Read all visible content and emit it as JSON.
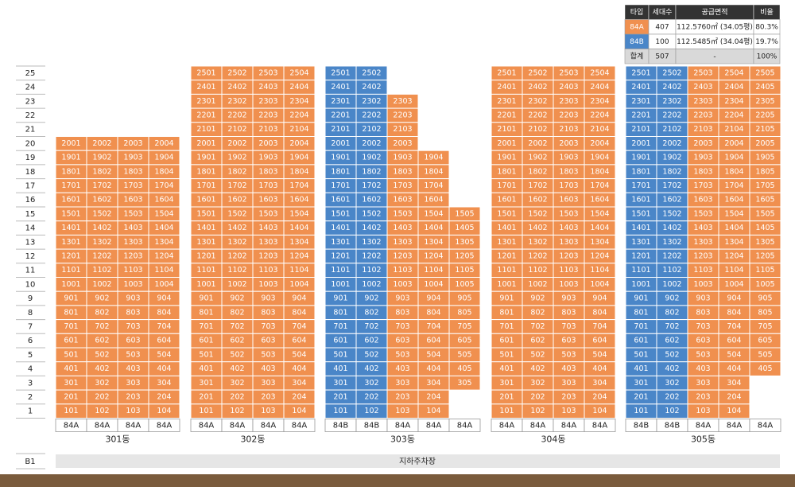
{
  "summary_table": {
    "headers": [
      "타입",
      "세대수",
      "공급면적",
      "비율"
    ],
    "rows": [
      [
        "84A",
        "407",
        "112.5760㎡ (34.05평)",
        "80.3%"
      ],
      [
        "84B",
        "100",
        "112.5485㎡ (34.04평)",
        "19.7%"
      ],
      [
        "합계",
        "507",
        "-",
        "100%"
      ]
    ]
  },
  "type_colors": {
    "84A": "#f0904f",
    "84B": "#4a86c8"
  },
  "floors": [
    25,
    24,
    23,
    22,
    21,
    20,
    19,
    18,
    17,
    16,
    15,
    14,
    13,
    12,
    11,
    10,
    9,
    8,
    7,
    6,
    5,
    4,
    3,
    2,
    1
  ],
  "basement": {
    "floor": "B1",
    "label": "지하주차장"
  },
  "buildings": [
    {
      "name": "301동",
      "types": [
        "84A",
        "84A",
        "84A",
        "84A"
      ],
      "rows": [
        [],
        [],
        [],
        [],
        [],
        [
          2001,
          2002,
          2003,
          2004
        ],
        [
          1901,
          1902,
          1903,
          1904
        ],
        [
          1801,
          1802,
          1803,
          1804
        ],
        [
          1701,
          1702,
          1703,
          1704
        ],
        [
          1601,
          1602,
          1603,
          1604
        ],
        [
          1501,
          1502,
          1503,
          1504
        ],
        [
          1401,
          1402,
          1403,
          1404
        ],
        [
          1301,
          1302,
          1303,
          1304
        ],
        [
          1201,
          1202,
          1203,
          1204
        ],
        [
          1101,
          1102,
          1103,
          1104
        ],
        [
          1001,
          1002,
          1003,
          1004
        ],
        [
          901,
          902,
          903,
          904
        ],
        [
          801,
          802,
          803,
          804
        ],
        [
          701,
          702,
          703,
          704
        ],
        [
          601,
          602,
          603,
          604
        ],
        [
          501,
          502,
          503,
          504
        ],
        [
          401,
          402,
          403,
          404
        ],
        [
          301,
          302,
          303,
          304
        ],
        [
          201,
          202,
          203,
          204
        ],
        [
          101,
          102,
          103,
          104
        ]
      ]
    },
    {
      "name": "302동",
      "types": [
        "84A",
        "84A",
        "84A",
        "84A"
      ],
      "rows": [
        [
          2501,
          2502,
          2503,
          2504
        ],
        [
          2401,
          2402,
          2403,
          2404
        ],
        [
          2301,
          2302,
          2303,
          2304
        ],
        [
          2201,
          2202,
          2203,
          2204
        ],
        [
          2101,
          2102,
          2103,
          2104
        ],
        [
          2001,
          2002,
          2003,
          2004
        ],
        [
          1901,
          1902,
          1903,
          1904
        ],
        [
          1801,
          1802,
          1803,
          1804
        ],
        [
          1701,
          1702,
          1703,
          1704
        ],
        [
          1601,
          1602,
          1603,
          1604
        ],
        [
          1501,
          1502,
          1503,
          1504
        ],
        [
          1401,
          1402,
          1403,
          1404
        ],
        [
          1301,
          1302,
          1303,
          1304
        ],
        [
          1201,
          1202,
          1203,
          1204
        ],
        [
          1101,
          1102,
          1103,
          1104
        ],
        [
          1001,
          1002,
          1003,
          1004
        ],
        [
          901,
          902,
          903,
          904
        ],
        [
          801,
          802,
          803,
          804
        ],
        [
          701,
          702,
          703,
          704
        ],
        [
          601,
          602,
          603,
          604
        ],
        [
          501,
          502,
          503,
          504
        ],
        [
          401,
          402,
          403,
          404
        ],
        [
          301,
          302,
          303,
          304
        ],
        [
          201,
          202,
          203,
          204
        ],
        [
          101,
          102,
          103,
          104
        ]
      ]
    },
    {
      "name": "303동",
      "types": [
        "84B",
        "84B",
        "84A",
        "84A",
        "84A"
      ],
      "rows": [
        [
          2501,
          2502
        ],
        [
          2401,
          2402
        ],
        [
          2301,
          2302,
          2303
        ],
        [
          2201,
          2202,
          2203
        ],
        [
          2101,
          2102,
          2103
        ],
        [
          2001,
          2002,
          2003
        ],
        [
          1901,
          1902,
          1903,
          1904
        ],
        [
          1801,
          1802,
          1803,
          1804
        ],
        [
          1701,
          1702,
          1703,
          1704
        ],
        [
          1601,
          1602,
          1603,
          1604
        ],
        [
          1501,
          1502,
          1503,
          1504,
          1505
        ],
        [
          1401,
          1402,
          1403,
          1404,
          1405
        ],
        [
          1301,
          1302,
          1303,
          1304,
          1305
        ],
        [
          1201,
          1202,
          1203,
          1204,
          1205
        ],
        [
          1101,
          1102,
          1103,
          1104,
          1105
        ],
        [
          1001,
          1002,
          1003,
          1004,
          1005
        ],
        [
          901,
          902,
          903,
          904,
          905
        ],
        [
          801,
          802,
          803,
          804,
          805
        ],
        [
          701,
          702,
          703,
          704,
          705
        ],
        [
          601,
          602,
          603,
          604,
          605
        ],
        [
          501,
          502,
          503,
          504,
          505
        ],
        [
          401,
          402,
          403,
          404,
          405
        ],
        [
          301,
          302,
          303,
          304,
          305
        ],
        [
          201,
          202,
          203,
          204
        ],
        [
          101,
          102,
          103,
          104
        ]
      ]
    },
    {
      "name": "304동",
      "types": [
        "84A",
        "84A",
        "84A",
        "84A"
      ],
      "rows": [
        [
          2501,
          2502,
          2503,
          2504
        ],
        [
          2401,
          2402,
          2403,
          2404
        ],
        [
          2301,
          2302,
          2303,
          2304
        ],
        [
          2201,
          2202,
          2203,
          2204
        ],
        [
          2101,
          2102,
          2103,
          2104
        ],
        [
          2001,
          2002,
          2003,
          2004
        ],
        [
          1901,
          1902,
          1903,
          1904
        ],
        [
          1801,
          1802,
          1803,
          1804
        ],
        [
          1701,
          1702,
          1703,
          1704
        ],
        [
          1601,
          1602,
          1603,
          1604
        ],
        [
          1501,
          1502,
          1503,
          1504
        ],
        [
          1401,
          1402,
          1403,
          1404
        ],
        [
          1301,
          1302,
          1303,
          1304
        ],
        [
          1201,
          1202,
          1203,
          1204
        ],
        [
          1101,
          1102,
          1103,
          1104
        ],
        [
          1001,
          1002,
          1003,
          1004
        ],
        [
          901,
          902,
          903,
          904
        ],
        [
          801,
          802,
          803,
          804
        ],
        [
          701,
          702,
          703,
          704
        ],
        [
          601,
          602,
          603,
          604
        ],
        [
          501,
          502,
          503,
          504
        ],
        [
          401,
          402,
          403,
          404
        ],
        [
          301,
          302,
          303,
          304
        ],
        [
          201,
          202,
          203,
          204
        ],
        [
          101,
          102,
          103,
          104
        ]
      ]
    },
    {
      "name": "305동",
      "types": [
        "84B",
        "84B",
        "84A",
        "84A",
        "84A"
      ],
      "rows": [
        [
          2501,
          2502,
          2503,
          2504,
          2505
        ],
        [
          2401,
          2402,
          2403,
          2404,
          2405
        ],
        [
          2301,
          2302,
          2303,
          2304,
          2305
        ],
        [
          2201,
          2202,
          2203,
          2204,
          2205
        ],
        [
          2101,
          2102,
          2103,
          2104,
          2105
        ],
        [
          2001,
          2002,
          2003,
          2004,
          2005
        ],
        [
          1901,
          1902,
          1903,
          1904,
          1905
        ],
        [
          1801,
          1802,
          1803,
          1804,
          1805
        ],
        [
          1701,
          1702,
          1703,
          1704,
          1705
        ],
        [
          1601,
          1602,
          1603,
          1604,
          1605
        ],
        [
          1501,
          1502,
          1503,
          1504,
          1505
        ],
        [
          1401,
          1402,
          1403,
          1404,
          1405
        ],
        [
          1301,
          1302,
          1303,
          1304,
          1305
        ],
        [
          1201,
          1202,
          1203,
          1204,
          1205
        ],
        [
          1101,
          1102,
          1103,
          1104,
          1105
        ],
        [
          1001,
          1002,
          1003,
          1004,
          1005
        ],
        [
          901,
          902,
          903,
          904,
          905
        ],
        [
          801,
          802,
          803,
          804,
          805
        ],
        [
          701,
          702,
          703,
          704,
          705
        ],
        [
          601,
          602,
          603,
          604,
          605
        ],
        [
          501,
          502,
          503,
          504,
          505
        ],
        [
          401,
          402,
          403,
          404,
          405
        ],
        [
          301,
          302,
          303,
          304
        ],
        [
          201,
          202,
          203,
          204
        ],
        [
          101,
          102,
          103,
          104
        ]
      ]
    }
  ]
}
